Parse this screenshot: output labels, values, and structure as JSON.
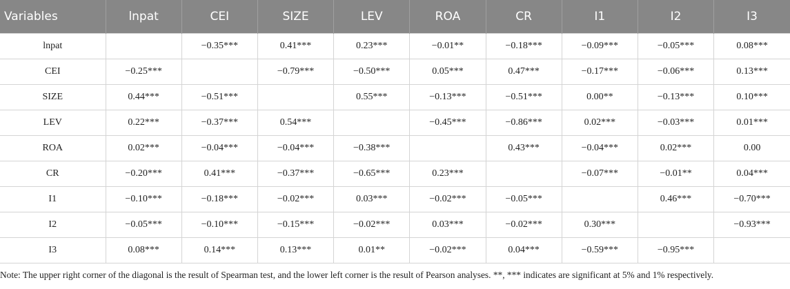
{
  "table": {
    "header": [
      "Variables",
      "lnpat",
      "CEI",
      "SIZE",
      "LEV",
      "ROA",
      "CR",
      "I1",
      "I2",
      "I3"
    ],
    "rows": [
      [
        "lnpat",
        null,
        "−0.35***",
        "0.41***",
        "0.23***",
        "−0.01**",
        "−0.18***",
        "−0.09***",
        "−0.05***",
        "0.08***"
      ],
      [
        "CEI",
        "−0.25***",
        null,
        "−0.79***",
        "−0.50***",
        "0.05***",
        "0.47***",
        "−0.17***",
        "−0.06***",
        "0.13***"
      ],
      [
        "SIZE",
        "0.44***",
        "−0.51***",
        null,
        "0.55***",
        "−0.13***",
        "−0.51***",
        "0.00**",
        "−0.13***",
        "0.10***"
      ],
      [
        "LEV",
        "0.22***",
        "−0.37***",
        "0.54***",
        null,
        "−0.45***",
        "−0.86***",
        "0.02***",
        "−0.03***",
        "0.01***"
      ],
      [
        "ROA",
        "0.02***",
        "−0.04***",
        "−0.04***",
        "−0.38***",
        null,
        "0.43***",
        "−0.04***",
        "0.02***",
        "0.00"
      ],
      [
        "CR",
        "−0.20***",
        "0.41***",
        "−0.37***",
        "−0.65***",
        "0.23***",
        null,
        "−0.07***",
        "−0.01**",
        "0.04***"
      ],
      [
        "I1",
        "−0.10***",
        "−0.18***",
        "−0.02***",
        "0.03***",
        "−0.02***",
        "−0.05***",
        null,
        "0.46***",
        "−0.70***"
      ],
      [
        "I2",
        "−0.05***",
        "−0.10***",
        "−0.15***",
        "−0.02***",
        "0.03***",
        "−0.02***",
        "0.30***",
        null,
        "−0.93***"
      ],
      [
        "I3",
        "0.08***",
        "0.14***",
        "0.13***",
        "0.01**",
        "−0.02***",
        "0.04***",
        "−0.59***",
        "−0.95***",
        null
      ]
    ]
  },
  "note": "Note: The upper right corner of the diagonal is the result of Spearman test, and the lower left corner is the result of Pearson analyses. **, *** indicates are significant at 5% and 1% respectively."
}
